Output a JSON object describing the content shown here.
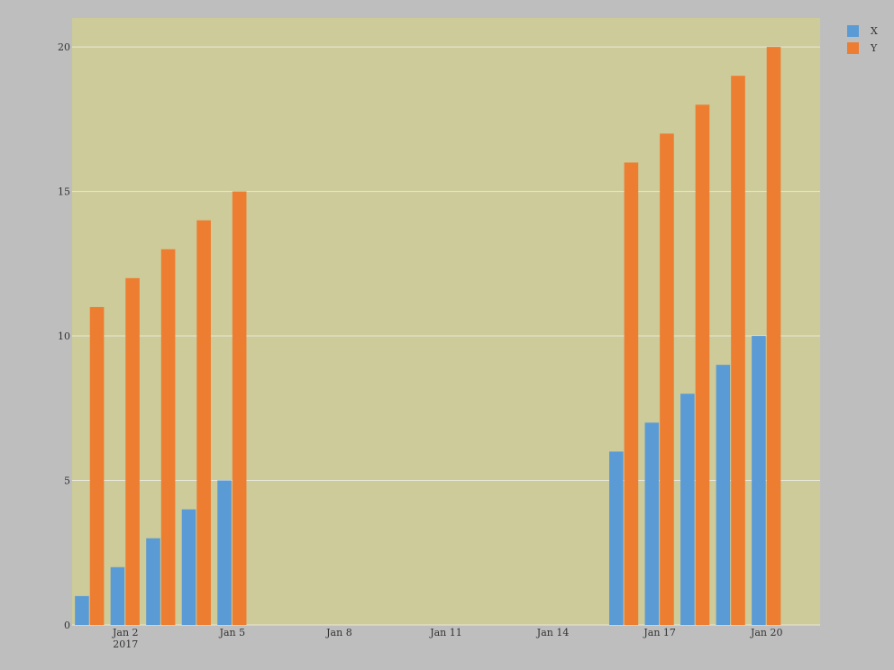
{
  "chart_data": {
    "type": "bar",
    "title": "",
    "xlabel": "",
    "ylabel": "",
    "x_dates": [
      "2017-01-01",
      "2017-01-02",
      "2017-01-03",
      "2017-01-04",
      "2017-01-05",
      "2017-01-16",
      "2017-01-17",
      "2017-01-18",
      "2017-01-19",
      "2017-01-20"
    ],
    "series": [
      {
        "name": "X",
        "color": "#5b9bd5",
        "values": [
          1,
          2,
          3,
          4,
          5,
          6,
          7,
          8,
          9,
          10
        ]
      },
      {
        "name": "Y",
        "color": "#ed7d31",
        "values": [
          11,
          12,
          13,
          14,
          15,
          16,
          17,
          18,
          19,
          20
        ]
      }
    ],
    "ylim": [
      0,
      21
    ],
    "xlim": [
      "2016-12-31T12:00",
      "2017-01-21T12:00"
    ],
    "y_ticks": [
      0,
      5,
      10,
      15,
      20
    ],
    "x_ticks": [
      {
        "date": "2017-01-02",
        "label": "Jan 2",
        "sublabel": "2017"
      },
      {
        "date": "2017-01-05",
        "label": "Jan 5",
        "sublabel": ""
      },
      {
        "date": "2017-01-08",
        "label": "Jan 8",
        "sublabel": ""
      },
      {
        "date": "2017-01-11",
        "label": "Jan 11",
        "sublabel": ""
      },
      {
        "date": "2017-01-14",
        "label": "Jan 14",
        "sublabel": ""
      },
      {
        "date": "2017-01-17",
        "label": "Jan 17",
        "sublabel": ""
      },
      {
        "date": "2017-01-20",
        "label": "Jan 20",
        "sublabel": ""
      }
    ],
    "grid": true,
    "legend_position": "top-right",
    "plot_background": "#cccb99",
    "page_background": "#bebebe",
    "grid_color": "#e8e8dc"
  }
}
